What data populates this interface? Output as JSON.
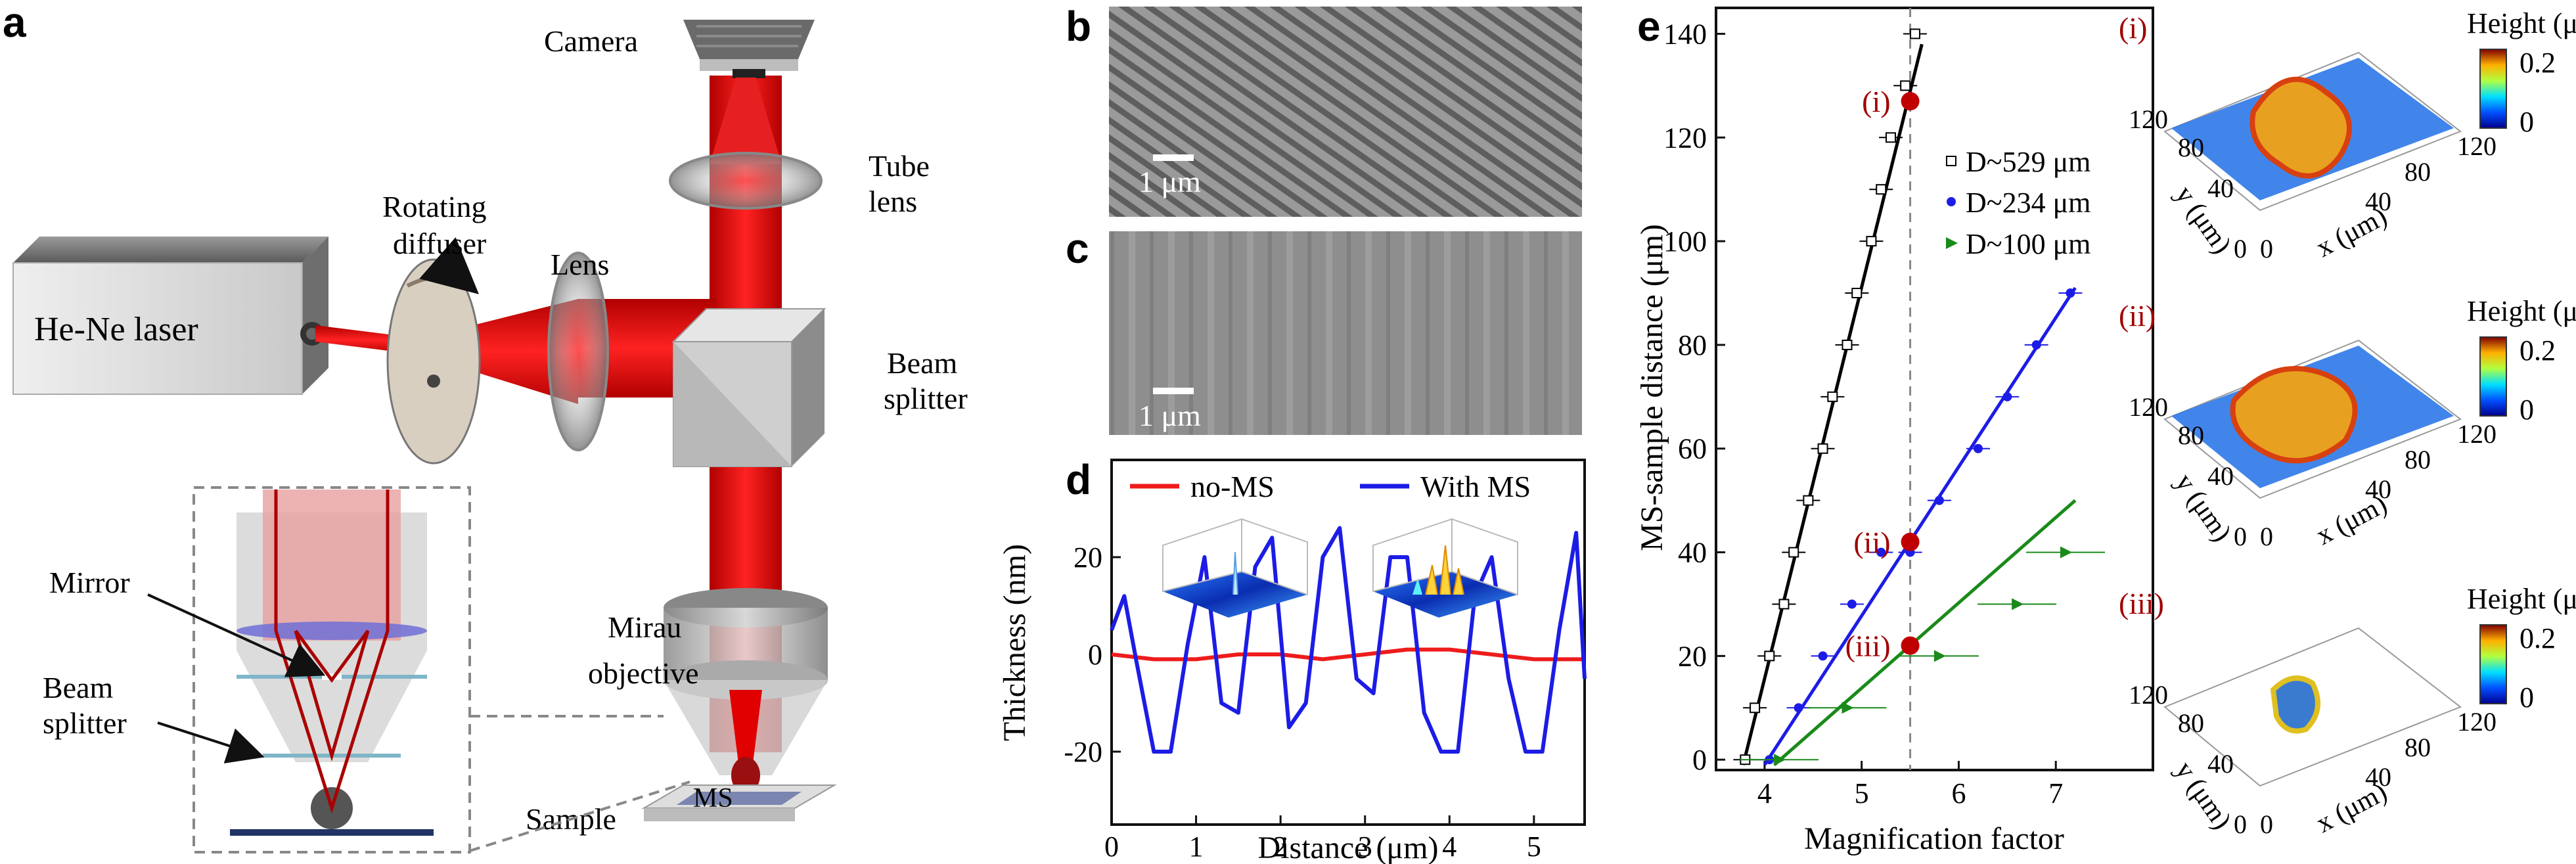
{
  "panels": {
    "a": {
      "letter": "a",
      "labels": {
        "camera": "Camera",
        "tube_lens_1": "Tube",
        "tube_lens_2": "lens",
        "rotating_1": "Rotating",
        "rotating_2": "diffuser",
        "lens": "Lens",
        "laser": "He-Ne laser",
        "beam_splitter_1": "Beam",
        "beam_splitter_2": "splitter",
        "mirau_1": "Mirau",
        "mirau_2": "objective",
        "mirror": "Mirror",
        "inset_beam_1": "Beam",
        "inset_beam_2": "splitter",
        "sample": "Sample",
        "ms": "MS"
      }
    },
    "b": {
      "letter": "b",
      "scalebar": "1 μm"
    },
    "c": {
      "letter": "c",
      "scalebar": "1 μm"
    },
    "d": {
      "letter": "d"
    },
    "e": {
      "letter": "e"
    },
    "insets": [
      {
        "tag": "(i)",
        "zlabel": "Height (μm)",
        "cmax": "0.2",
        "cmin": "0",
        "ytick_top": "120",
        "ytick_mid": "80",
        "ytick_low": "40",
        "origin_y": "0",
        "origin_x": "0",
        "xtick_mid": "40",
        "xtick_hi": "80",
        "xtick_top": "120",
        "ylabel": "y (μm)",
        "xlabel": "x (μm)"
      },
      {
        "tag": "(ii)",
        "zlabel": "Height (μm)",
        "cmax": "0.2",
        "cmin": "0",
        "ytick_top": "120",
        "ytick_mid": "80",
        "ytick_low": "40",
        "origin_y": "0",
        "origin_x": "0",
        "xtick_mid": "40",
        "xtick_hi": "80",
        "xtick_top": "120",
        "ylabel": "y (μm)",
        "xlabel": "x (μm)"
      },
      {
        "tag": "(iii)",
        "zlabel": "Height (μm)",
        "cmax": "0.2",
        "cmin": "0",
        "ytick_top": "120",
        "ytick_mid": "80",
        "ytick_low": "40",
        "origin_y": "0",
        "origin_x": "0",
        "xtick_mid": "40",
        "xtick_hi": "80",
        "xtick_top": "120",
        "ylabel": "y (μm)",
        "xlabel": "x (μm)"
      }
    ]
  },
  "chart_data": [
    {
      "type": "line",
      "panel": "d",
      "xlabel": "Distance (μm)",
      "ylabel": "Thickness (nm)",
      "xlim": [
        0,
        5.6
      ],
      "ylim": [
        -35,
        40
      ],
      "xticks": [
        "0",
        "1",
        "2",
        "3",
        "4",
        "5"
      ],
      "yticks": [
        "-20",
        "0",
        "20"
      ],
      "legend": [
        "no-MS",
        "With MS"
      ],
      "colors": {
        "no-MS": "#ee1c1c",
        "With MS": "#1c1ce6"
      },
      "series": [
        {
          "name": "no-MS",
          "x": [
            0,
            0.5,
            1,
            1.5,
            2,
            2.5,
            3,
            3.5,
            4,
            4.5,
            5,
            5.6
          ],
          "y": [
            0,
            -1,
            -1,
            0,
            0,
            -1,
            0,
            1,
            1,
            0,
            -1,
            -1
          ]
        },
        {
          "name": "With MS",
          "x": [
            0,
            0.15,
            0.3,
            0.5,
            0.7,
            0.9,
            1.1,
            1.3,
            1.5,
            1.7,
            1.9,
            2.1,
            2.3,
            2.5,
            2.7,
            2.9,
            3.1,
            3.3,
            3.5,
            3.7,
            3.9,
            4.1,
            4.3,
            4.5,
            4.7,
            4.9,
            5.1,
            5.3,
            5.5,
            5.6
          ],
          "y": [
            5,
            12,
            -2,
            -20,
            -20,
            2,
            20,
            -10,
            -12,
            18,
            24,
            -15,
            -10,
            20,
            26,
            -5,
            -8,
            20,
            20,
            -12,
            -20,
            -20,
            12,
            20,
            -5,
            -20,
            -20,
            5,
            25,
            -5
          ]
        }
      ]
    },
    {
      "type": "scatter",
      "panel": "e",
      "xlabel": "Magnification factor",
      "ylabel": "MS-sample distance (μm)",
      "xlim": [
        3.5,
        8.0
      ],
      "ylim": [
        -2,
        145
      ],
      "xticks": [
        "4",
        "5",
        "6",
        "7"
      ],
      "yticks": [
        "0",
        "20",
        "40",
        "60",
        "80",
        "100",
        "120",
        "140"
      ],
      "reference_line_x": 5.5,
      "legend": [
        "D~529 μm",
        "D~234 μm",
        "D~100 μm"
      ],
      "colors": {
        "D~529 μm": "#000000",
        "D~234 μm": "#1c1ce6",
        "D~100 μm": "#1a8a1a"
      },
      "series": [
        {
          "name": "D~529 μm",
          "marker": "open-square",
          "x": [
            3.8,
            3.9,
            4.05,
            4.2,
            4.3,
            4.45,
            4.6,
            4.7,
            4.85,
            4.95,
            5.1,
            5.2,
            5.3,
            5.45,
            5.55
          ],
          "y": [
            0,
            10,
            20,
            30,
            40,
            50,
            60,
            70,
            80,
            90,
            100,
            110,
            120,
            130,
            140
          ],
          "fit": [
            [
              3.78,
              -1
            ],
            [
              5.62,
              138
            ]
          ]
        },
        {
          "name": "D~234 μm",
          "marker": "filled-circle",
          "x": [
            4.05,
            4.35,
            4.6,
            4.9,
            5.2,
            5.5,
            5.8,
            6.2,
            6.5,
            6.8,
            7.15
          ],
          "y": [
            0,
            10,
            20,
            30,
            40,
            40,
            50,
            60,
            70,
            80,
            90
          ],
          "fit": [
            [
              4.0,
              -1
            ],
            [
              7.2,
              91
            ]
          ]
        },
        {
          "name": "D~100 μm",
          "marker": "filled-triangle",
          "x": [
            4.15,
            4.85,
            5.8,
            6.6,
            7.1
          ],
          "y": [
            0,
            10,
            20,
            30,
            40
          ],
          "fit": [
            [
              4.1,
              -1
            ],
            [
              7.2,
              50
            ]
          ]
        }
      ],
      "highlighted_points": [
        {
          "label": "(i)",
          "x": 5.5,
          "y": 127
        },
        {
          "label": "(ii)",
          "x": 5.5,
          "y": 42
        },
        {
          "label": "(iii)",
          "x": 5.5,
          "y": 22
        }
      ]
    }
  ]
}
